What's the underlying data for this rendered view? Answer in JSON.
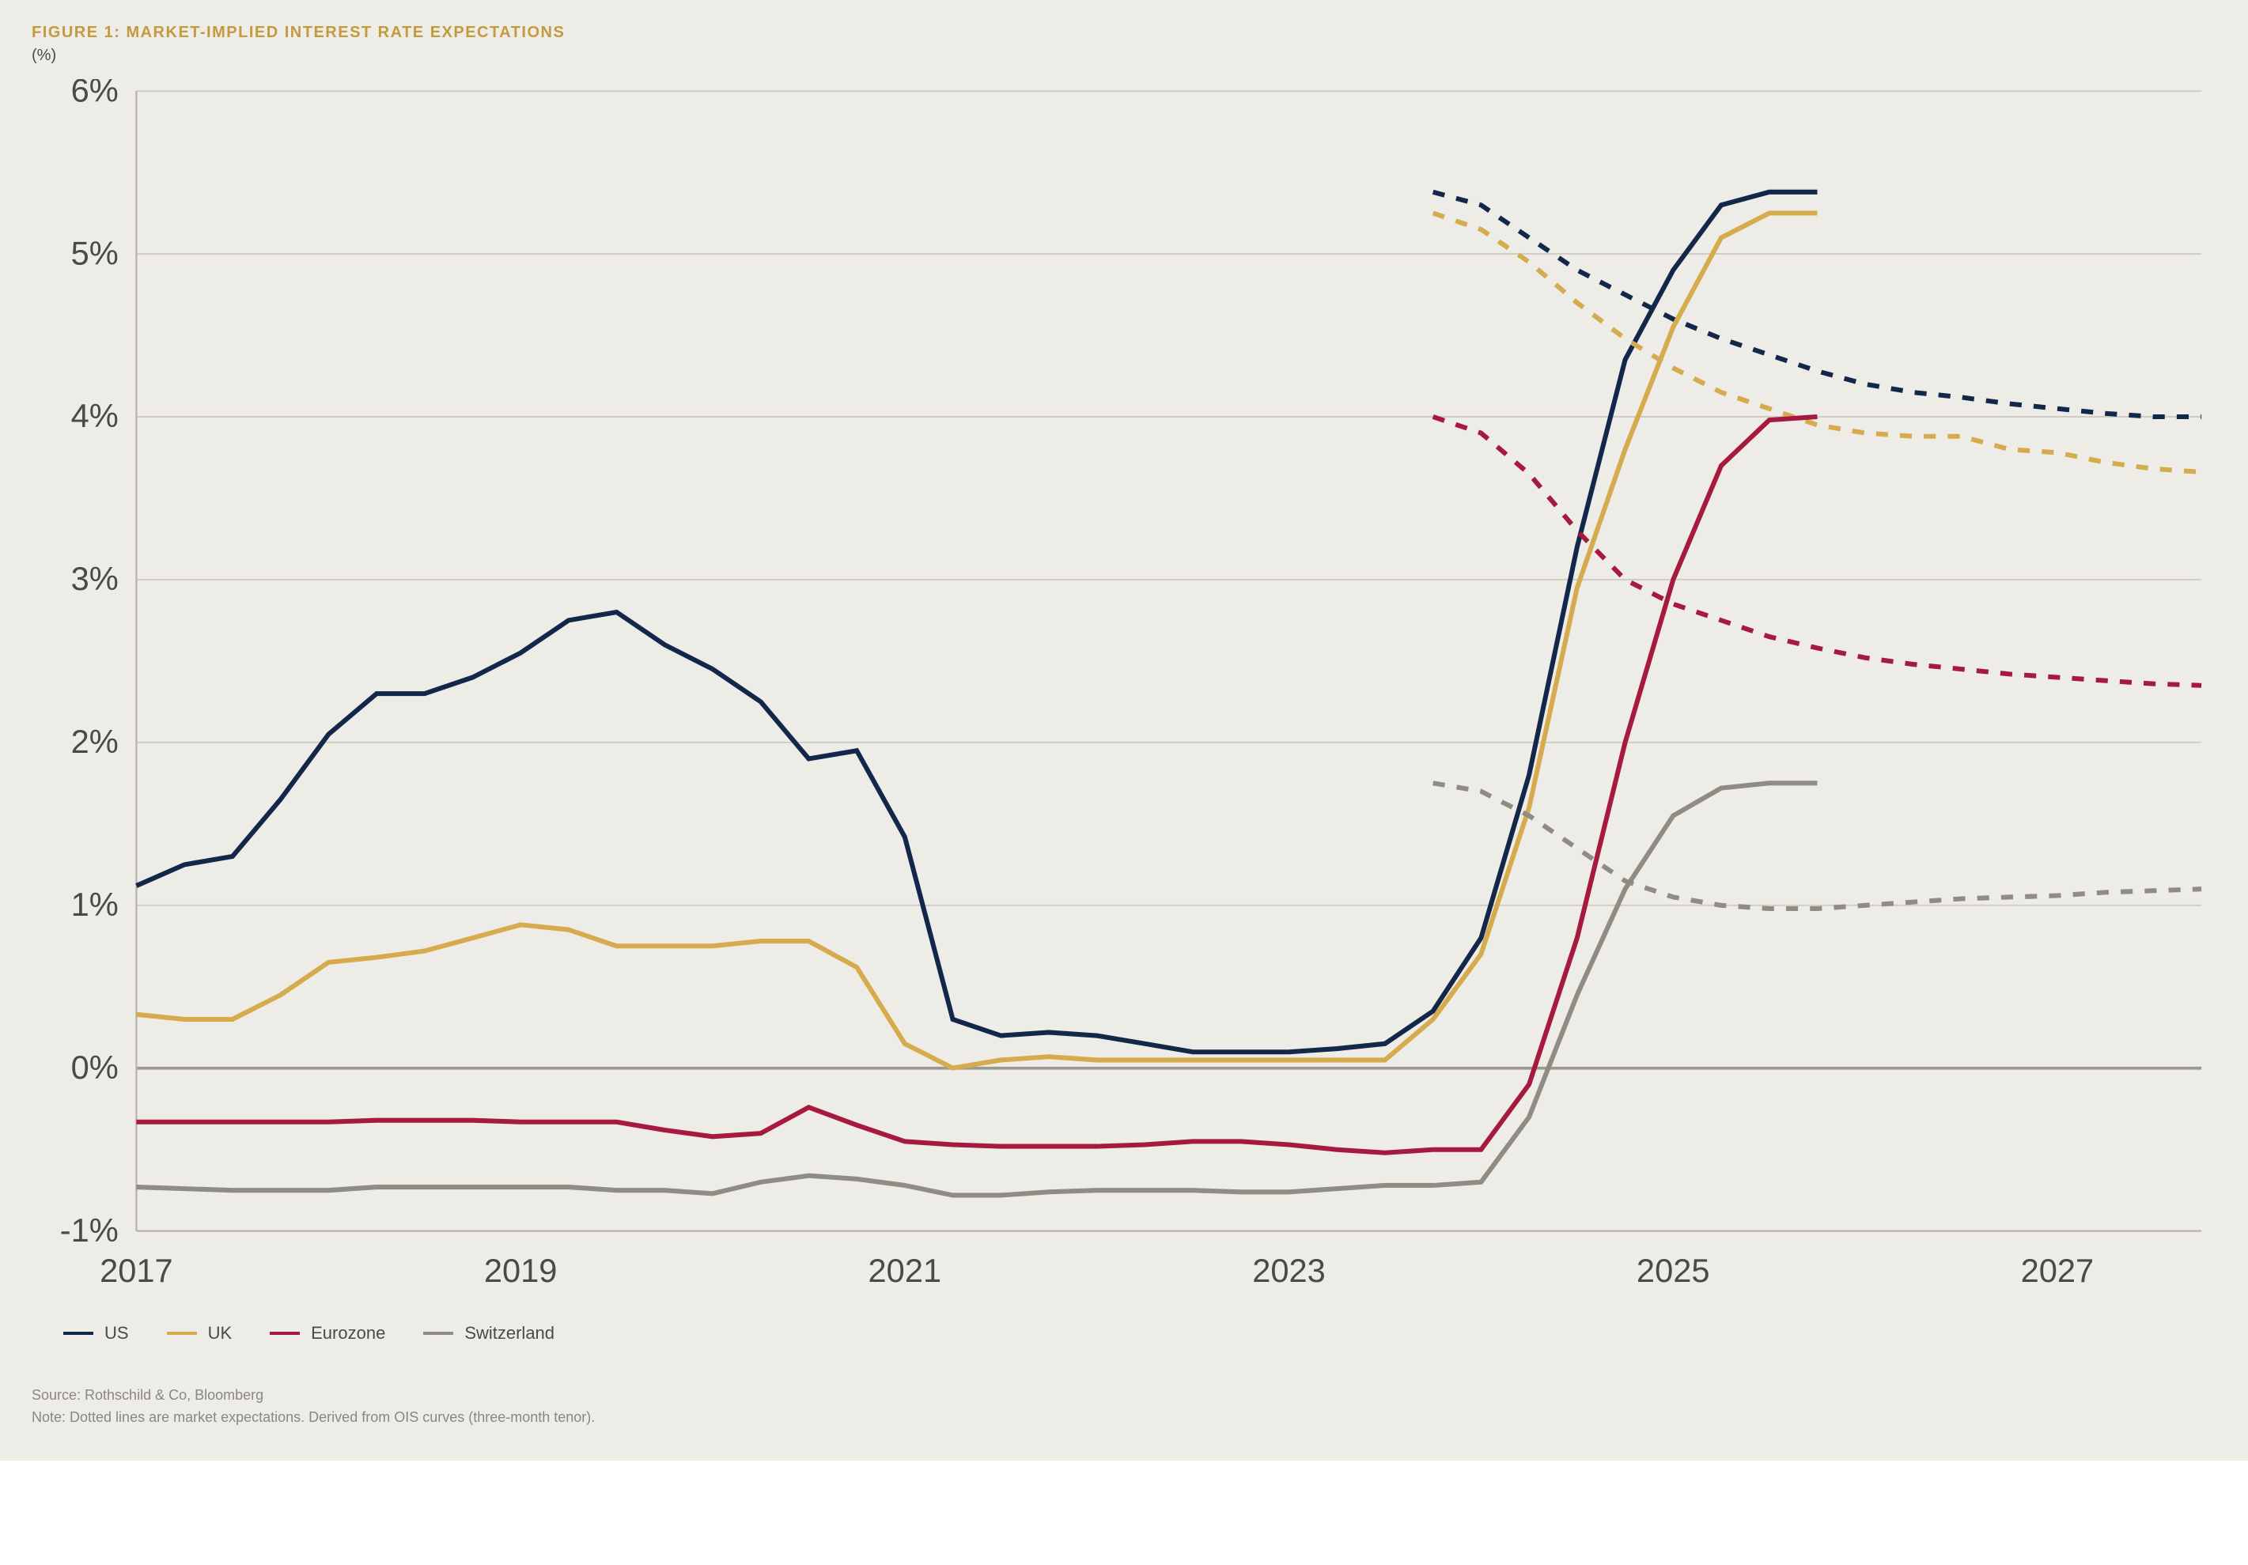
{
  "title": "FIGURE 1: MARKET-IMPLIED INTEREST RATE EXPECTATIONS",
  "title_fontsize": 20,
  "title_color": "#c39a3e",
  "unit_label": "(%)",
  "unit_fontsize": 20,
  "background_color": "#eeece7",
  "axis_label_color": "#4a4a4a",
  "axis_label_fontsize": 22,
  "grid_color": "#cfcbc2",
  "zero_line_color": "#9b9890",
  "border_color": "#b8b4aa",
  "note_color": "#8a8780",
  "legend_fontsize": 22,
  "chart": {
    "type": "line",
    "xlim": [
      2017,
      2027.75
    ],
    "ylim": [
      -1,
      6
    ],
    "y_ticks": [
      -1,
      0,
      1,
      2,
      3,
      4,
      5,
      6
    ],
    "y_tick_labels": [
      "-1%",
      "0%",
      "1%",
      "2%",
      "3%",
      "4%",
      "5%",
      "6%"
    ],
    "x_ticks": [
      2017,
      2019,
      2021,
      2023,
      2025,
      2027
    ],
    "x_tick_labels": [
      "2017",
      "2019",
      "2021",
      "2023",
      "2025",
      "2027"
    ],
    "line_width": 3.2,
    "dash_pattern": "8 8",
    "x_step": 0.25,
    "split_x": 2023.75,
    "series": [
      {
        "name": "US",
        "color": "#13274a",
        "solid": [
          1.12,
          1.25,
          1.3,
          1.65,
          2.05,
          2.3,
          2.3,
          2.4,
          2.55,
          2.75,
          2.8,
          2.6,
          2.45,
          2.25,
          1.9,
          1.95,
          1.42,
          0.3,
          0.2,
          0.22,
          0.2,
          0.15,
          0.1,
          0.1,
          0.1,
          0.12,
          0.15,
          0.35,
          0.8,
          1.8,
          3.2,
          4.35,
          4.9,
          5.3,
          5.38,
          5.38
        ],
        "dotted": [
          5.38,
          5.3,
          5.1,
          4.9,
          4.75,
          4.6,
          4.48,
          4.38,
          4.28,
          4.2,
          4.15,
          4.12,
          4.08,
          4.05,
          4.02,
          4.0,
          4.0
        ]
      },
      {
        "name": "UK",
        "color": "#d5ab4e",
        "solid": [
          0.33,
          0.3,
          0.3,
          0.45,
          0.65,
          0.68,
          0.72,
          0.8,
          0.88,
          0.85,
          0.75,
          0.75,
          0.75,
          0.78,
          0.78,
          0.62,
          0.15,
          0.0,
          0.05,
          0.07,
          0.05,
          0.05,
          0.05,
          0.05,
          0.05,
          0.05,
          0.05,
          0.3,
          0.7,
          1.6,
          2.95,
          3.8,
          4.55,
          5.1,
          5.25,
          5.25
        ],
        "dotted": [
          5.25,
          5.15,
          4.95,
          4.7,
          4.48,
          4.3,
          4.15,
          4.05,
          3.95,
          3.9,
          3.88,
          3.88,
          3.8,
          3.78,
          3.72,
          3.68,
          3.66
        ]
      },
      {
        "name": "Eurozone",
        "color": "#a71a3f",
        "solid": [
          -0.33,
          -0.33,
          -0.33,
          -0.33,
          -0.33,
          -0.32,
          -0.32,
          -0.32,
          -0.33,
          -0.33,
          -0.33,
          -0.38,
          -0.42,
          -0.4,
          -0.24,
          -0.35,
          -0.45,
          -0.47,
          -0.48,
          -0.48,
          -0.48,
          -0.47,
          -0.45,
          -0.45,
          -0.47,
          -0.5,
          -0.52,
          -0.5,
          -0.5,
          -0.1,
          0.8,
          2.0,
          3.0,
          3.7,
          3.98,
          4.0
        ],
        "dotted": [
          4.0,
          3.9,
          3.65,
          3.3,
          3.0,
          2.85,
          2.75,
          2.65,
          2.58,
          2.52,
          2.48,
          2.45,
          2.42,
          2.4,
          2.38,
          2.36,
          2.35
        ]
      },
      {
        "name": "Switzerland",
        "color": "#8f8c84",
        "solid": [
          -0.73,
          -0.74,
          -0.75,
          -0.75,
          -0.75,
          -0.73,
          -0.73,
          -0.73,
          -0.73,
          -0.73,
          -0.75,
          -0.75,
          -0.77,
          -0.7,
          -0.66,
          -0.68,
          -0.72,
          -0.78,
          -0.78,
          -0.76,
          -0.75,
          -0.75,
          -0.75,
          -0.76,
          -0.76,
          -0.74,
          -0.72,
          -0.72,
          -0.7,
          -0.3,
          0.45,
          1.1,
          1.55,
          1.72,
          1.75,
          1.75
        ],
        "dotted": [
          1.75,
          1.7,
          1.55,
          1.35,
          1.15,
          1.05,
          1.0,
          0.98,
          0.98,
          1.0,
          1.02,
          1.04,
          1.05,
          1.06,
          1.08,
          1.09,
          1.1
        ]
      }
    ]
  },
  "source": "Source: Rothschild & Co, Bloomberg",
  "note": "Note: Dotted lines are market expectations. Derived from OIS curves (three-month tenor).",
  "note_fontsize": 18
}
